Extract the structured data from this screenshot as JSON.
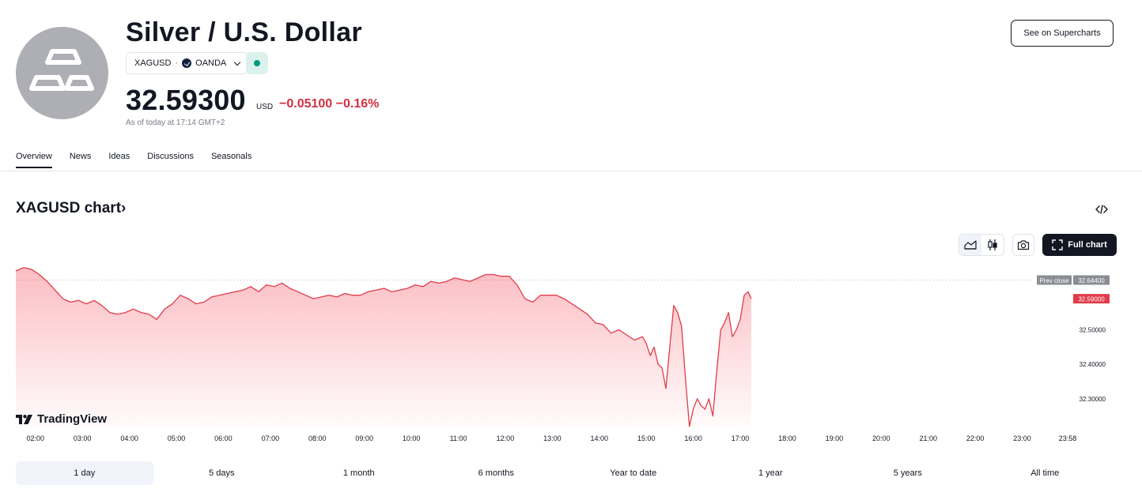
{
  "header": {
    "title": "Silver / U.S. Dollar",
    "symbol": "XAGUSD",
    "separator": "·",
    "broker": "OANDA",
    "price": "32.59300",
    "currency": "USD",
    "change": "−0.05100",
    "change_percent": "−0.16%",
    "as_of": "As of today at 17:14 GMT+2",
    "supercharts_label": "See on Supercharts",
    "logo_icon": "silver-bars-icon",
    "status_color": "#089981"
  },
  "tabs": [
    {
      "label": "Overview",
      "active": true
    },
    {
      "label": "News"
    },
    {
      "label": "Ideas"
    },
    {
      "label": "Discussions"
    },
    {
      "label": "Seasonals"
    }
  ],
  "chart_section": {
    "title": "XAGUSD chart",
    "title_chevron": "›",
    "full_chart_label": "Full chart",
    "brand": "TradingView"
  },
  "chart_data": {
    "type": "area",
    "x_ticks": [
      "02:00",
      "03:00",
      "04:00",
      "05:00",
      "06:00",
      "07:00",
      "08:00",
      "09:00",
      "10:00",
      "11:00",
      "12:00",
      "13:00",
      "14:00",
      "15:00",
      "16:00",
      "17:00",
      "18:00",
      "19:00",
      "20:00",
      "21:00",
      "22:00",
      "23:00",
      "23:58"
    ],
    "y_ticks": [
      "32.50000",
      "32.40000",
      "32.30000"
    ],
    "y_tick_values": [
      32.5,
      32.4,
      32.3
    ],
    "prev_close_label": "Prev close",
    "prev_close_value": "32.64400",
    "prev_close_num": 32.644,
    "last_value": "32.59000",
    "last_num": 32.59,
    "line_color": "#e03c4a",
    "series": [
      {
        "x": [
          "01:35",
          "01:45",
          "01:55",
          "02:05",
          "02:15",
          "02:25",
          "02:35",
          "02:45",
          "02:55",
          "03:05",
          "03:15",
          "03:25",
          "03:35",
          "03:45",
          "03:55",
          "04:05",
          "04:15",
          "04:25",
          "04:35",
          "04:45",
          "04:55",
          "05:05",
          "05:15",
          "05:25",
          "05:35",
          "05:45",
          "05:55",
          "06:05",
          "06:15",
          "06:25",
          "06:35",
          "06:45",
          "06:55",
          "07:05",
          "07:15",
          "07:25",
          "07:35",
          "07:45",
          "07:55",
          "08:05",
          "08:15",
          "08:25",
          "08:35",
          "08:45",
          "08:55",
          "09:05",
          "09:15",
          "09:25",
          "09:35",
          "09:45",
          "09:55",
          "10:05",
          "10:15",
          "10:25",
          "10:35",
          "10:45",
          "10:55",
          "11:05",
          "11:15",
          "11:25",
          "11:35",
          "11:45",
          "11:55",
          "12:05",
          "12:15",
          "12:25",
          "12:35",
          "12:45",
          "12:55",
          "13:05",
          "13:15",
          "13:25",
          "13:35",
          "13:45",
          "13:55",
          "14:05",
          "14:15",
          "14:25",
          "14:35",
          "14:45",
          "14:55",
          "15:00",
          "15:05",
          "15:10",
          "15:15",
          "15:20",
          "15:25",
          "15:30",
          "15:35",
          "15:40",
          "15:45",
          "15:50",
          "15:55",
          "16:00",
          "16:05",
          "16:10",
          "16:15",
          "16:20",
          "16:25",
          "16:30",
          "16:35",
          "16:40",
          "16:45",
          "16:50",
          "16:55",
          "17:00",
          "17:05",
          "17:10",
          "17:14"
        ],
        "values": [
          32.67,
          32.68,
          32.675,
          32.66,
          32.64,
          32.615,
          32.59,
          32.58,
          32.585,
          32.575,
          32.585,
          32.57,
          32.55,
          32.545,
          32.55,
          32.56,
          32.55,
          32.545,
          32.53,
          32.56,
          32.575,
          32.6,
          32.59,
          32.575,
          32.58,
          32.595,
          32.6,
          32.605,
          32.61,
          32.615,
          32.625,
          32.61,
          32.63,
          32.625,
          32.635,
          32.62,
          32.61,
          32.6,
          32.59,
          32.595,
          32.6,
          32.595,
          32.605,
          32.6,
          32.6,
          32.61,
          32.615,
          32.62,
          32.61,
          32.615,
          32.62,
          32.63,
          32.625,
          32.64,
          32.635,
          32.64,
          32.65,
          32.645,
          32.64,
          32.65,
          32.66,
          32.66,
          32.655,
          32.655,
          32.63,
          32.59,
          32.58,
          32.6,
          32.6,
          32.6,
          32.59,
          32.575,
          32.56,
          32.545,
          32.52,
          32.515,
          32.49,
          32.5,
          32.485,
          32.47,
          32.48,
          32.46,
          32.425,
          32.45,
          32.4,
          32.39,
          32.33,
          32.45,
          32.57,
          32.55,
          32.51,
          32.36,
          32.22,
          32.27,
          32.3,
          32.28,
          32.27,
          32.3,
          32.25,
          32.38,
          32.5,
          32.52,
          32.55,
          32.48,
          32.5,
          32.53,
          32.6,
          32.61,
          32.59
        ]
      }
    ],
    "x_range": [
      "01:35",
      "23:58"
    ],
    "ylim": [
      32.215,
      32.7
    ],
    "grid": false
  },
  "ranges": [
    {
      "label": "1 day",
      "active": true
    },
    {
      "label": "5 days"
    },
    {
      "label": "1 month"
    },
    {
      "label": "6 months"
    },
    {
      "label": "Year to date"
    },
    {
      "label": "1 year"
    },
    {
      "label": "5 years"
    },
    {
      "label": "All time"
    }
  ]
}
